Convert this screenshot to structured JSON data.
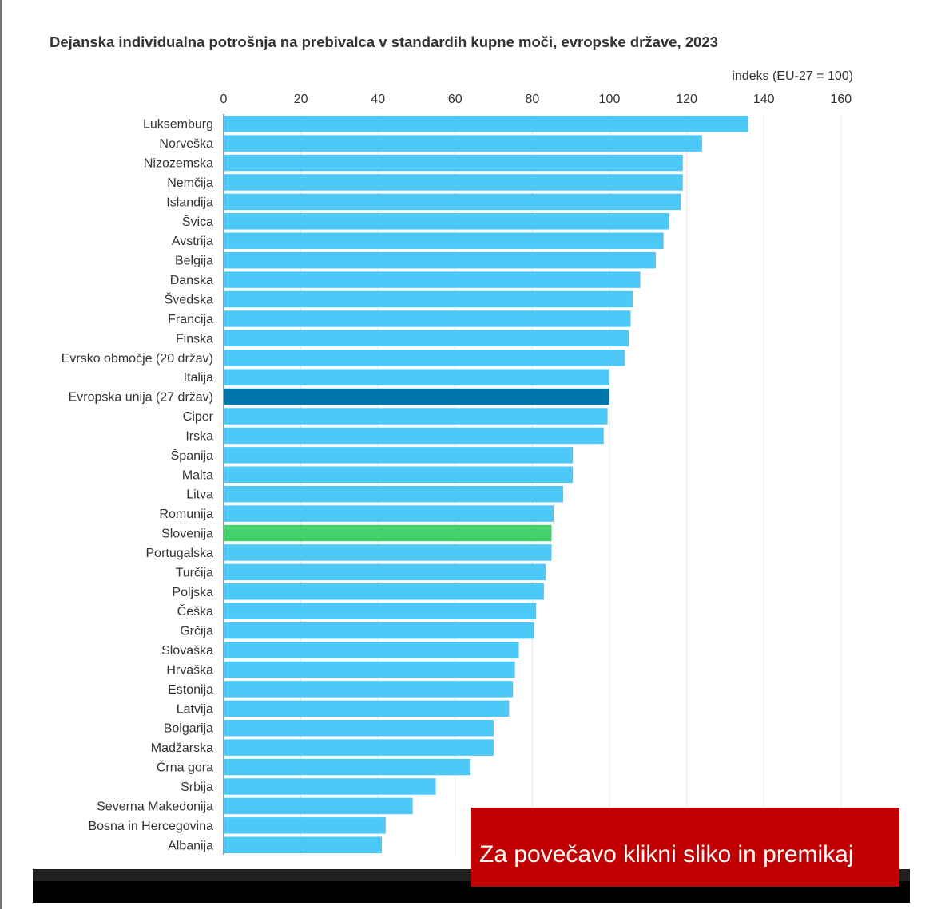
{
  "chart_data": {
    "type": "bar",
    "orientation": "horizontal",
    "title": "Dejanska individualna potrošnja na prebivalca v standardih kupne moči, evropske države, 2023",
    "unit_label": "indeks (EU-27 = 100)",
    "xlim": [
      0,
      160
    ],
    "x_ticks": [
      "0",
      "20",
      "40",
      "60",
      "80",
      "100",
      "120",
      "140",
      "160"
    ],
    "grid": true,
    "colors": {
      "default": "#4dc9f8",
      "eu": "#0077aa",
      "slovenia": "#44d16b"
    },
    "categories": [
      "Luksemburg",
      "Norveška",
      "Nizozemska",
      "Nemčija",
      "Islandija",
      "Švica",
      "Avstrija",
      "Belgija",
      "Danska",
      "Švedska",
      "Francija",
      "Finska",
      "Evrsko območje (20 držav)",
      "Italija",
      "Evropska unija (27 držav)",
      "Ciper",
      "Irska",
      "Španija",
      "Malta",
      "Litva",
      "Romunija",
      "Slovenija",
      "Portugalska",
      "Turčija",
      "Poljska",
      "Češka",
      "Grčija",
      "Slovaška",
      "Hrvaška",
      "Estonija",
      "Latvija",
      "Bolgarija",
      "Madžarska",
      "Črna gora",
      "Srbija",
      "Severna Makedonija",
      "Bosna in Hercegovina",
      "Albanija"
    ],
    "values": [
      136,
      124,
      119,
      119,
      118.5,
      115.5,
      114,
      112,
      108,
      106,
      105.5,
      105,
      104,
      100,
      100,
      99.5,
      98.5,
      90.5,
      90.5,
      88,
      85.5,
      85,
      85,
      83.5,
      83,
      81,
      80.5,
      76.5,
      75.5,
      75,
      74,
      70,
      70,
      64,
      55,
      49,
      42,
      41
    ],
    "highlight": {
      "Evropska unija (27 držav)": "eu",
      "Slovenija": "slovenia"
    }
  },
  "overlay": {
    "zoom_hint": "Za povečavo klikni sliko in premikaj"
  }
}
